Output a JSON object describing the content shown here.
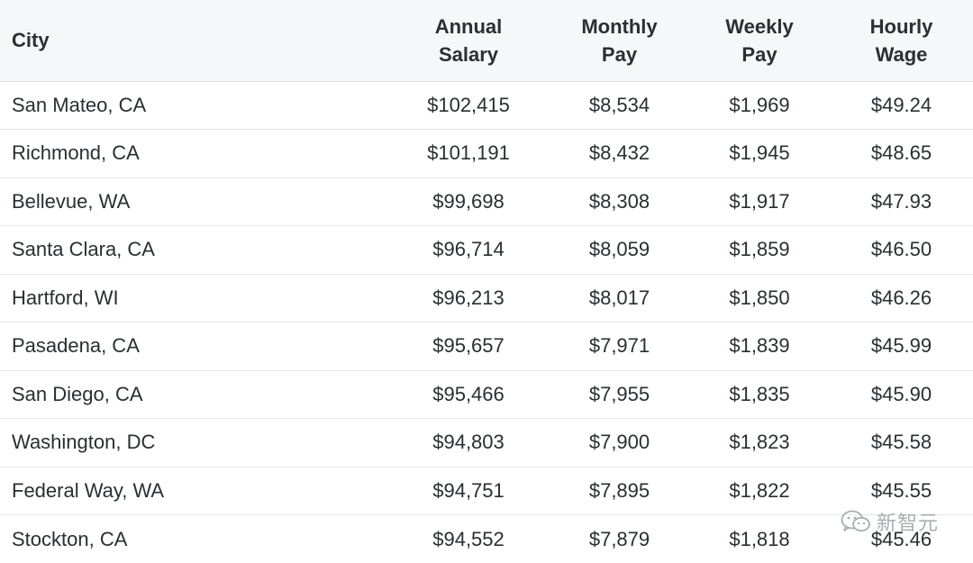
{
  "headers": {
    "city": "City",
    "annual_line1": "Annual",
    "annual_line2": "Salary",
    "monthly_line1": "Monthly",
    "monthly_line2": "Pay",
    "weekly_line1": "Weekly",
    "weekly_line2": "Pay",
    "hourly_line1": "Hourly",
    "hourly_line2": "Wage"
  },
  "rows": [
    {
      "city": "San Mateo, CA",
      "annual": "$102,415",
      "monthly": "$8,534",
      "weekly": "$1,969",
      "hourly": "$49.24"
    },
    {
      "city": "Richmond, CA",
      "annual": "$101,191",
      "monthly": "$8,432",
      "weekly": "$1,945",
      "hourly": "$48.65"
    },
    {
      "city": "Bellevue, WA",
      "annual": "$99,698",
      "monthly": "$8,308",
      "weekly": "$1,917",
      "hourly": "$47.93"
    },
    {
      "city": "Santa Clara, CA",
      "annual": "$96,714",
      "monthly": "$8,059",
      "weekly": "$1,859",
      "hourly": "$46.50"
    },
    {
      "city": "Hartford, WI",
      "annual": "$96,213",
      "monthly": "$8,017",
      "weekly": "$1,850",
      "hourly": "$46.26"
    },
    {
      "city": "Pasadena, CA",
      "annual": "$95,657",
      "monthly": "$7,971",
      "weekly": "$1,839",
      "hourly": "$45.99"
    },
    {
      "city": "San Diego, CA",
      "annual": "$95,466",
      "monthly": "$7,955",
      "weekly": "$1,835",
      "hourly": "$45.90"
    },
    {
      "city": "Washington, DC",
      "annual": "$94,803",
      "monthly": "$7,900",
      "weekly": "$1,823",
      "hourly": "$45.58"
    },
    {
      "city": "Federal Way, WA",
      "annual": "$94,751",
      "monthly": "$7,895",
      "weekly": "$1,822",
      "hourly": "$45.55"
    },
    {
      "city": "Stockton, CA",
      "annual": "$94,552",
      "monthly": "$7,879",
      "weekly": "$1,818",
      "hourly": "$45.46"
    }
  ],
  "watermark": {
    "text": "新智元",
    "icon": "wechat-icon"
  }
}
